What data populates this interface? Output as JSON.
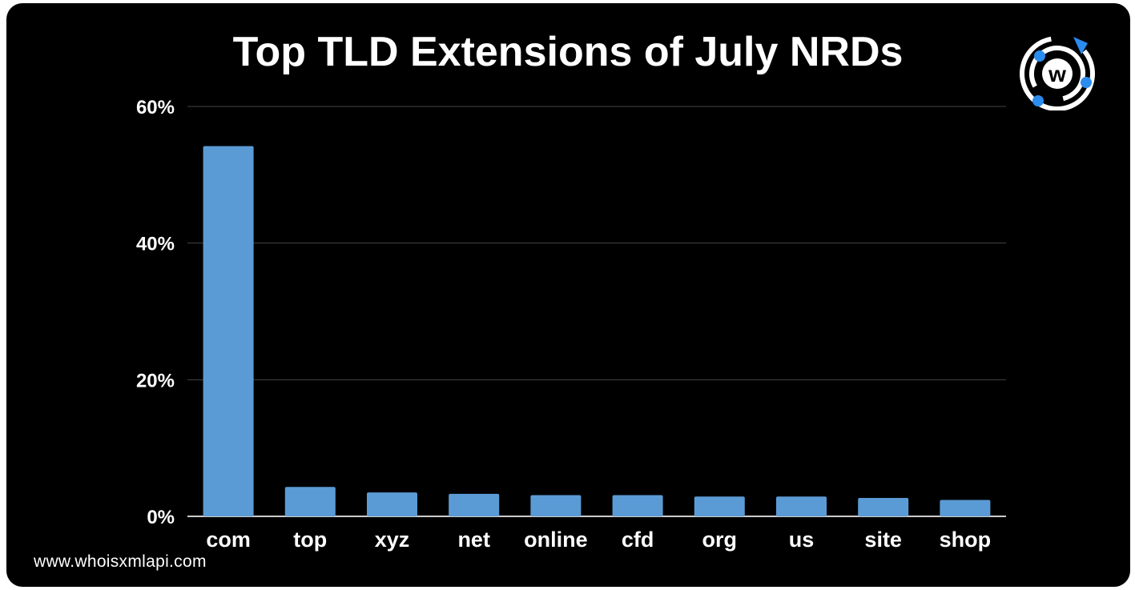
{
  "footer": {
    "url": "www.whoisxmlapi.com"
  },
  "logo": {
    "icon": "whoisxmlapi-logo-icon",
    "letter": "w",
    "accent_color": "#2b8cf0"
  },
  "chart_data": {
    "type": "bar",
    "title": "Top TLD Extensions of July NRDs",
    "xlabel": "",
    "ylabel": "",
    "categories": [
      "com",
      "top",
      "xyz",
      "net",
      "online",
      "cfd",
      "org",
      "us",
      "site",
      "shop"
    ],
    "values": [
      54.2,
      4.3,
      3.5,
      3.3,
      3.1,
      3.1,
      2.9,
      2.9,
      2.7,
      2.4
    ],
    "ylim": [
      0,
      60
    ],
    "yticks": [
      0,
      20,
      40,
      60
    ],
    "ytick_labels": [
      "0%",
      "20%",
      "40%",
      "60%"
    ],
    "grid": true,
    "legend": "none",
    "bar_color": "#5b9bd5",
    "gridline_color": "#444444",
    "background_color": "#000000"
  }
}
